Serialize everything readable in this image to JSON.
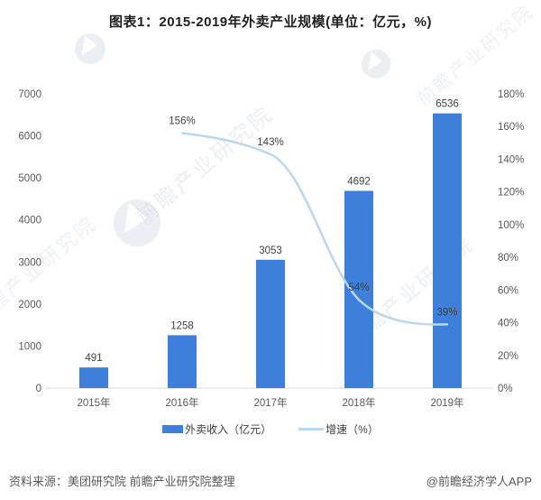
{
  "title": "图表1：2015-2019年外卖产业规模(单位：亿元，%)",
  "chart_data": {
    "type": "bar+line combo",
    "categories": [
      "2015年",
      "2016年",
      "2017年",
      "2018年",
      "2019年"
    ],
    "series": [
      {
        "name": "外卖收入（亿元）",
        "type": "bar",
        "axis": "left",
        "values": [
          491,
          1258,
          3053,
          4692,
          6536
        ],
        "color": "#3E7FDB"
      },
      {
        "name": "增速（%）",
        "type": "line",
        "axis": "right",
        "values": [
          null,
          156,
          143,
          54,
          39
        ],
        "labels": [
          "",
          "156%",
          "143%",
          "54%",
          "39%"
        ],
        "color": "#BCD6EB"
      }
    ],
    "left_axis": {
      "min": 0,
      "max": 7000,
      "step": 1000
    },
    "right_axis": {
      "min": 0,
      "max": 180,
      "step": 20,
      "suffix": "%"
    },
    "grid": false,
    "legend_position": "bottom",
    "data_labels": true
  },
  "footer": {
    "source": "资料来源：美团研究院 前瞻产业研究院整理",
    "credit": "@前瞻经济学人APP"
  },
  "watermark": {
    "text": "前瞻产业研究院",
    "logo": "qianzhan-bird-logo"
  },
  "colors": {
    "bar": "#3E7FDB",
    "line": "#BCD6EB",
    "axis_line": "#D9D9D9",
    "tick_label": "#595959",
    "data_label": "#404040",
    "watermark": "#D8DDE8"
  }
}
